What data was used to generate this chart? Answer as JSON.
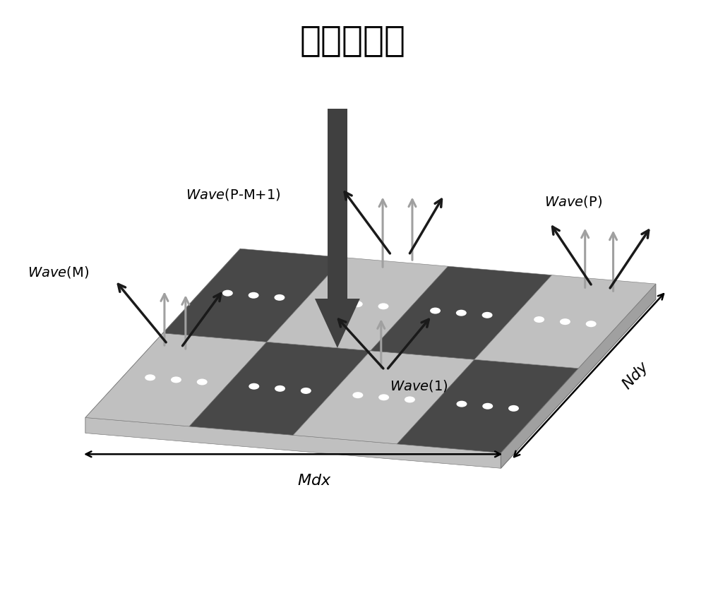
{
  "title": "入射电磁波",
  "title_fontsize": 36,
  "title_fontweight": "bold",
  "bg_color": "#ffffff",
  "board_light": "#c8c8c8",
  "board_dark": "#484848",
  "board_mid": "#a0a0a0",
  "board_edge_front": "#b8b8b8",
  "board_edge_side": "#909090",
  "board_edge_bot": "#a8a8a8",
  "arrow_dark": "#1a1a1a",
  "arrow_gray": "#a0a0a0",
  "arrow_incoming": "#404040"
}
